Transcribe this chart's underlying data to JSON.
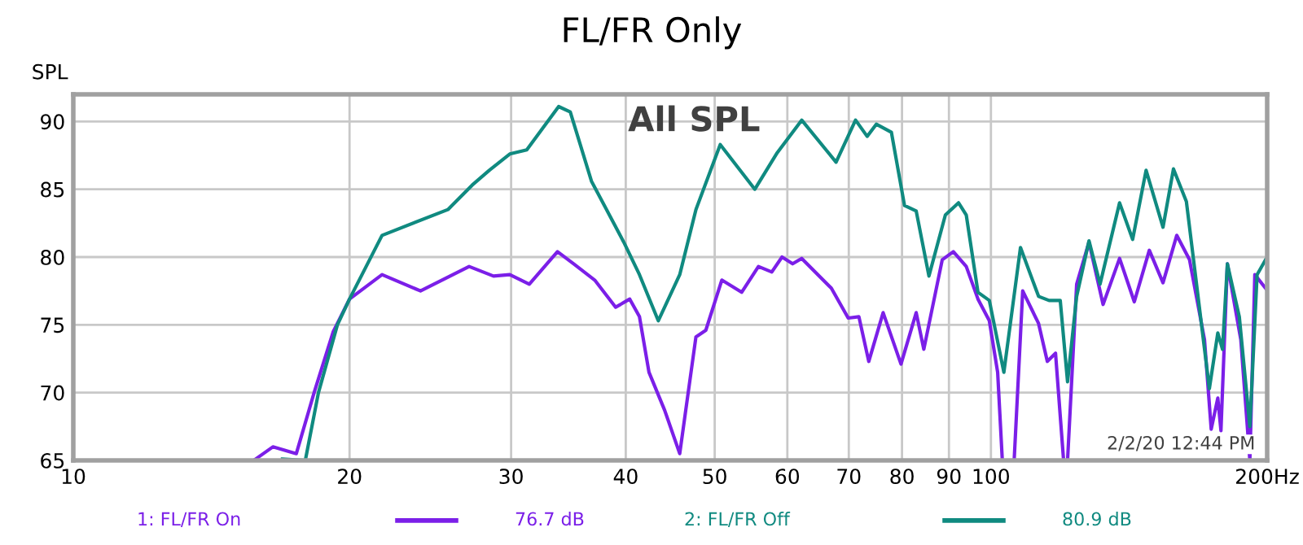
{
  "chart_data": {
    "type": "line",
    "title": "FL/FR Only",
    "ylabel": "SPL",
    "annotations": [
      "All SPL",
      "2/2/20 12:44 PM",
      "76.7 dB",
      "80.9 dB"
    ],
    "log": "x",
    "xlim": [
      10,
      200
    ],
    "ylim": [
      65,
      92
    ],
    "xticks": [
      10,
      20,
      30,
      40,
      50,
      60,
      70,
      80,
      90,
      100,
      {
        "value": 200,
        "label": "200Hz"
      }
    ],
    "yticks": [
      65,
      70,
      75,
      80,
      85,
      90
    ],
    "grid": true,
    "legend": "bottom",
    "marker": "none",
    "line_style": "solid",
    "series": [
      {
        "name": "1: FL/FR On",
        "color": "#7b1fe8",
        "x": [
          15.8,
          16.5,
          17.5,
          18.3,
          19.2,
          20,
          21.7,
          23.9,
          27.0,
          28.7,
          29.9,
          31.4,
          33.7,
          35.1,
          37.0,
          39.0,
          40.4,
          41.4,
          42.4,
          44.1,
          45.8,
          47.7,
          48.9,
          50.9,
          53.5,
          55.8,
          57.7,
          59.2,
          60.8,
          62.2,
          67.0,
          69.9,
          71.8,
          73.6,
          76.3,
          79.8,
          82.9,
          84.5,
          88.5,
          91.0,
          94.0,
          96.8,
          99.6,
          101.7,
          102.9,
          106,
          108.3,
          112.7,
          115.2,
          117.6,
          120,
          121.2,
          124,
          127.9,
          132.5,
          138.1,
          143.3,
          148.8,
          154,
          159.4,
          164.6,
          170.9,
          173.8,
          176.7,
          178.1,
          181,
          187.2,
          191.5,
          193.9,
          199.2
        ],
        "values": [
          65.1,
          66.0,
          65.5,
          70,
          74.5,
          76.9,
          78.7,
          77.5,
          79.3,
          78.6,
          78.7,
          78.0,
          80.4,
          79.5,
          78.3,
          76.3,
          76.9,
          75.6,
          71.5,
          68.7,
          65.5,
          74.1,
          74.6,
          78.3,
          77.4,
          79.3,
          78.9,
          80.0,
          79.5,
          79.9,
          77.7,
          75.5,
          75.6,
          72.3,
          75.9,
          72.1,
          75.9,
          73.2,
          79.8,
          80.4,
          79.3,
          76.9,
          75.3,
          71.5,
          65,
          65,
          77.5,
          75.1,
          72.3,
          72.9,
          65,
          65,
          78.0,
          81.1,
          76.5,
          79.9,
          76.7,
          80.5,
          78.1,
          81.6,
          79.8,
          73.9,
          67.3,
          69.6,
          67.2,
          79.5,
          73.9,
          65,
          78.7,
          77.7
        ]
      },
      {
        "name": "2: FL/FR Off",
        "color": "#108a80",
        "x": [
          16.9,
          17.9,
          18.5,
          19.4,
          20,
          21.7,
          25.6,
          27.2,
          28.4,
          29.9,
          31.2,
          33.8,
          34.8,
          36.7,
          39.8,
          41.4,
          43.4,
          45.8,
          47.7,
          50.7,
          55.3,
          58.5,
          62.2,
          67.8,
          71.2,
          73.3,
          75.0,
          77.9,
          80.5,
          82.9,
          85.6,
          89.2,
          92.2,
          94.0,
          96.8,
          99.6,
          103.3,
          107.7,
          112.7,
          115.7,
          119.0,
          121.2,
          124,
          127.9,
          131.5,
          138.1,
          142.7,
          147.6,
          154,
          158.1,
          163.3,
          173,
          176.7,
          178.8,
          181,
          186.5,
          191.5,
          195,
          199.2
        ],
        "values": [
          65.1,
          65,
          70,
          75,
          76.9,
          81.6,
          83.5,
          85.3,
          86.4,
          87.6,
          87.9,
          91.1,
          90.7,
          85.6,
          81.1,
          78.7,
          75.3,
          78.7,
          83.5,
          88.3,
          85.0,
          87.7,
          90.1,
          87.0,
          90.1,
          88.9,
          89.8,
          89.2,
          83.8,
          83.4,
          78.6,
          83.1,
          84.0,
          83.1,
          77.4,
          76.8,
          71.5,
          80.7,
          77.1,
          76.8,
          76.8,
          70.8,
          77.1,
          81.2,
          78.0,
          84.0,
          81.3,
          86.4,
          82.2,
          86.5,
          84.1,
          70.3,
          74.4,
          73.2,
          79.5,
          75.6,
          67.5,
          78.7,
          79.8
        ]
      }
    ]
  }
}
